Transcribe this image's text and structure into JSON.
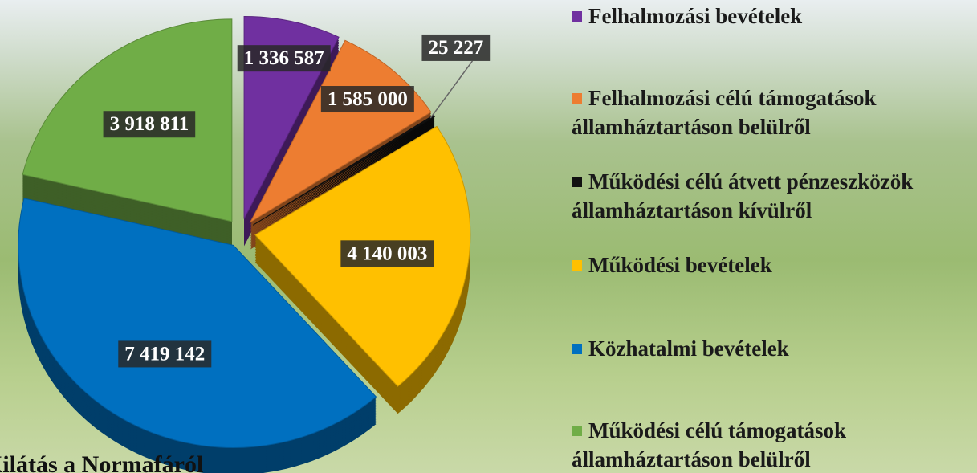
{
  "chart_data": {
    "type": "pie",
    "series": [
      {
        "name": "Felhalmozási bevételek",
        "color": "#7030a0",
        "values": [
          1336587
        ],
        "value_labels": [
          "1 336 587"
        ]
      },
      {
        "name": "Felhalmozási célú támogatások államháztartáson belülről",
        "color": "#ed7d31",
        "values": [
          1585000
        ],
        "value_labels": [
          "1 585 000"
        ]
      },
      {
        "name": "Működési célú átvett pénzeszközök államháztartáson kívülről",
        "color": "#111111",
        "values": [
          25227
        ],
        "value_labels": [
          "25 227"
        ]
      },
      {
        "name": "Működési bevételek",
        "color": "#ffc000",
        "values": [
          4140003
        ],
        "value_labels": [
          "4 140 003"
        ]
      },
      {
        "name": "Közhatalmi bevételek",
        "color": "#0070c0",
        "values": [
          7419142
        ],
        "value_labels": [
          "7 419 142"
        ]
      },
      {
        "name": "Működési célú támogatások államháztartáson belülről",
        "color": "#70ad47",
        "values": [
          3918811
        ],
        "value_labels": [
          "3 918 811"
        ]
      }
    ],
    "caption": "Kilátás a Normafáról"
  }
}
